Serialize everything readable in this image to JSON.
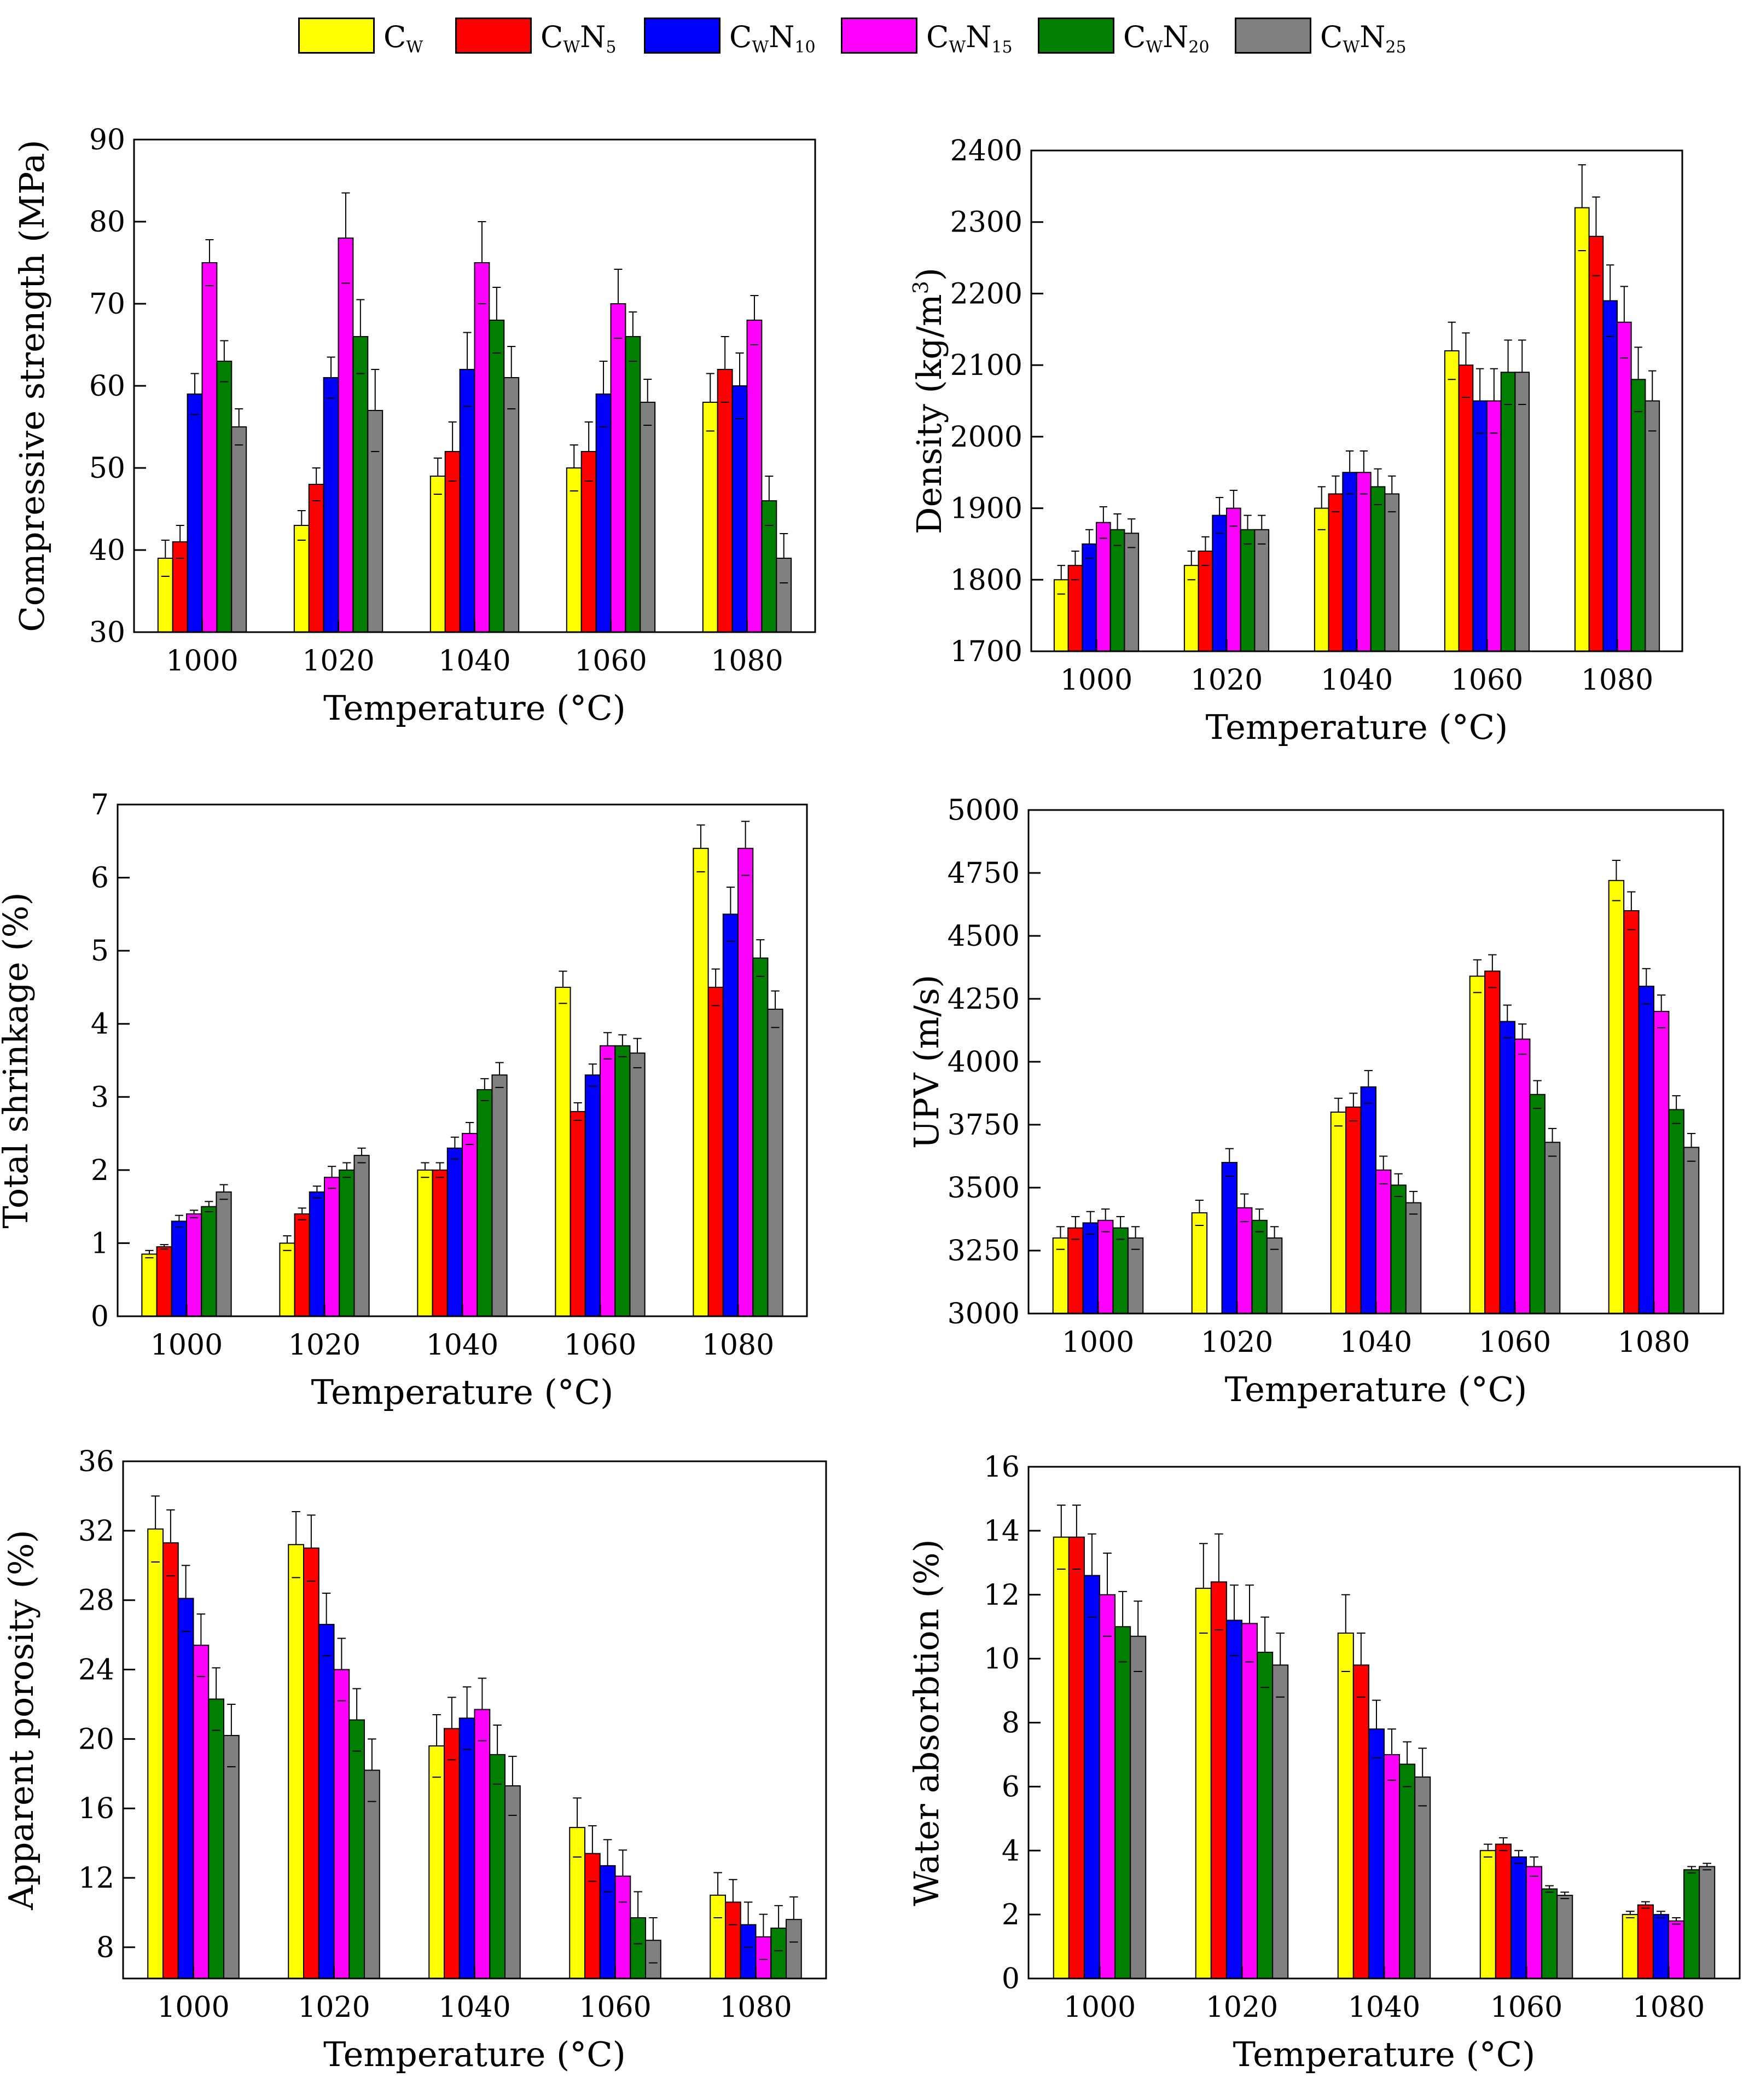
{
  "legend": {
    "items": [
      {
        "base": "C",
        "sub1": "W",
        "mid": "",
        "sub2": "",
        "color": "#ffff00"
      },
      {
        "base": "C",
        "sub1": "W",
        "mid": "N",
        "sub2": "5",
        "color": "#ff0000"
      },
      {
        "base": "C",
        "sub1": "W",
        "mid": "N",
        "sub2": "10",
        "color": "#0000ff"
      },
      {
        "base": "C",
        "sub1": "W",
        "mid": "N",
        "sub2": "15",
        "color": "#ff00ff"
      },
      {
        "base": "C",
        "sub1": "W",
        "mid": "N",
        "sub2": "20",
        "color": "#007f00"
      },
      {
        "base": "C",
        "sub1": "W",
        "mid": "N",
        "sub2": "25",
        "color": "#808080"
      }
    ]
  },
  "chart_data": [
    {
      "type": "bar",
      "xlabel": "Temperature (°C)",
      "ylabel": "Compressive strength (MPa)",
      "ylabel_parts": null,
      "ylim": [
        30,
        90
      ],
      "yticks": [
        30,
        40,
        50,
        60,
        70,
        80,
        90
      ],
      "categories": [
        "1000",
        "1020",
        "1040",
        "1060",
        "1080"
      ],
      "series": [
        {
          "name": "CW",
          "color": "#ffff00",
          "values": [
            39,
            43,
            49,
            50,
            58
          ],
          "errors": [
            2.2,
            1.8,
            2.2,
            2.8,
            3.5
          ]
        },
        {
          "name": "CWN5",
          "color": "#ff0000",
          "values": [
            41,
            48,
            52,
            52,
            62
          ],
          "errors": [
            2.0,
            2.0,
            3.6,
            3.6,
            4.0
          ]
        },
        {
          "name": "CWN10",
          "color": "#0000ff",
          "values": [
            59,
            61,
            62,
            59,
            60
          ],
          "errors": [
            2.5,
            2.5,
            4.5,
            4.0,
            4.0
          ]
        },
        {
          "name": "CWN15",
          "color": "#ff00ff",
          "values": [
            75,
            78,
            75,
            70,
            68
          ],
          "errors": [
            2.8,
            5.5,
            5.0,
            4.2,
            3.0
          ]
        },
        {
          "name": "CWN20",
          "color": "#007f00",
          "values": [
            63,
            66,
            68,
            66,
            46
          ],
          "errors": [
            2.5,
            4.5,
            4.0,
            3.0,
            3.0
          ]
        },
        {
          "name": "CWN25",
          "color": "#808080",
          "values": [
            55,
            57,
            61,
            58,
            39
          ],
          "errors": [
            2.2,
            5.0,
            3.8,
            2.8,
            3.0
          ]
        }
      ]
    },
    {
      "type": "bar",
      "xlabel": "Temperature (°C)",
      "ylabel": "Density (kg/m3)",
      "ylabel_parts": {
        "main": "Density (kg/m",
        "sup": "3",
        "end": ")"
      },
      "ylim": [
        1700,
        2400
      ],
      "yticks": [
        1700,
        1800,
        1900,
        2000,
        2100,
        2200,
        2300,
        2400
      ],
      "categories": [
        "1000",
        "1020",
        "1040",
        "1060",
        "1080"
      ],
      "series": [
        {
          "name": "CW",
          "color": "#ffff00",
          "values": [
            1800,
            1820,
            1900,
            2120,
            2320
          ],
          "errors": [
            20,
            20,
            30,
            40,
            60
          ]
        },
        {
          "name": "CWN5",
          "color": "#ff0000",
          "values": [
            1820,
            1840,
            1920,
            2100,
            2280
          ],
          "errors": [
            20,
            20,
            25,
            45,
            55
          ]
        },
        {
          "name": "CWN10",
          "color": "#0000ff",
          "values": [
            1850,
            1890,
            1950,
            2050,
            2190
          ],
          "errors": [
            20,
            25,
            30,
            45,
            50
          ]
        },
        {
          "name": "CWN15",
          "color": "#ff00ff",
          "values": [
            1880,
            1900,
            1950,
            2050,
            2160
          ],
          "errors": [
            22,
            25,
            30,
            45,
            50
          ]
        },
        {
          "name": "CWN20",
          "color": "#007f00",
          "values": [
            1870,
            1870,
            1930,
            2090,
            2080
          ],
          "errors": [
            22,
            20,
            25,
            45,
            45
          ]
        },
        {
          "name": "CWN25",
          "color": "#808080",
          "values": [
            1865,
            1870,
            1920,
            2090,
            2050
          ],
          "errors": [
            20,
            20,
            25,
            45,
            42
          ]
        }
      ]
    },
    {
      "type": "bar",
      "xlabel": "Temperature (°C)",
      "ylabel": "Total shrinkage (%)",
      "ylabel_parts": null,
      "ylim": [
        0,
        7
      ],
      "yticks": [
        0,
        1,
        2,
        3,
        4,
        5,
        6,
        7
      ],
      "categories": [
        "1000",
        "1020",
        "1040",
        "1060",
        "1080"
      ],
      "series": [
        {
          "name": "CW",
          "color": "#ffff00",
          "values": [
            0.85,
            1.0,
            2.0,
            4.5,
            6.4
          ],
          "errors": [
            0.05,
            0.1,
            0.1,
            0.22,
            0.32
          ]
        },
        {
          "name": "CWN5",
          "color": "#ff0000",
          "values": [
            0.95,
            1.4,
            2.0,
            2.8,
            4.5
          ],
          "errors": [
            0.03,
            0.08,
            0.1,
            0.12,
            0.25
          ]
        },
        {
          "name": "CWN10",
          "color": "#0000ff",
          "values": [
            1.3,
            1.7,
            2.3,
            3.3,
            5.5
          ],
          "errors": [
            0.08,
            0.08,
            0.15,
            0.15,
            0.37
          ]
        },
        {
          "name": "CWN15",
          "color": "#ff00ff",
          "values": [
            1.4,
            1.9,
            2.5,
            3.7,
            6.4
          ],
          "errors": [
            0.05,
            0.15,
            0.15,
            0.18,
            0.37
          ]
        },
        {
          "name": "CWN20",
          "color": "#007f00",
          "values": [
            1.5,
            2.0,
            3.1,
            3.7,
            4.9
          ],
          "errors": [
            0.07,
            0.1,
            0.15,
            0.15,
            0.25
          ]
        },
        {
          "name": "CWN25",
          "color": "#808080",
          "values": [
            1.7,
            2.2,
            3.3,
            3.6,
            4.2
          ],
          "errors": [
            0.1,
            0.1,
            0.17,
            0.2,
            0.25
          ]
        }
      ]
    },
    {
      "type": "bar",
      "xlabel": "Temperature (°C)",
      "ylabel": "UPV (m/s)",
      "ylabel_parts": null,
      "ylim": [
        3000,
        5000
      ],
      "yticks": [
        3000,
        3250,
        3500,
        3750,
        4000,
        4250,
        4500,
        4750,
        5000
      ],
      "categories": [
        "1000",
        "1020",
        "1040",
        "1060",
        "1080"
      ],
      "series": [
        {
          "name": "CW",
          "color": "#ffff00",
          "values": [
            3300,
            3400,
            3800,
            4340,
            4720
          ],
          "errors": [
            45,
            50,
            55,
            65,
            80
          ]
        },
        {
          "name": "CWN5",
          "color": "#ff0000",
          "values": [
            3340,
            3000,
            3820,
            4360,
            4600
          ],
          "errors": [
            45,
            0,
            55,
            65,
            75
          ]
        },
        {
          "name": "CWN10",
          "color": "#0000ff",
          "values": [
            3360,
            3600,
            3900,
            4160,
            4300
          ],
          "errors": [
            45,
            55,
            65,
            65,
            70
          ]
        },
        {
          "name": "CWN15",
          "color": "#ff00ff",
          "values": [
            3370,
            3420,
            3570,
            4090,
            4200
          ],
          "errors": [
            45,
            55,
            55,
            60,
            65
          ]
        },
        {
          "name": "CWN20",
          "color": "#007f00",
          "values": [
            3340,
            3370,
            3510,
            3870,
            3810
          ],
          "errors": [
            45,
            45,
            45,
            55,
            55
          ]
        },
        {
          "name": "CWN25",
          "color": "#808080",
          "values": [
            3300,
            3300,
            3440,
            3680,
            3660
          ],
          "errors": [
            45,
            45,
            45,
            55,
            55
          ]
        }
      ]
    },
    {
      "type": "bar",
      "xlabel": "Temperature (°C)",
      "ylabel": "Apparent porosity (%)",
      "ylabel_parts": null,
      "ylim": [
        6.2,
        36
      ],
      "yticks": [
        8,
        12,
        16,
        20,
        24,
        28,
        32,
        36
      ],
      "categories": [
        "1000",
        "1020",
        "1040",
        "1060",
        "1080"
      ],
      "series": [
        {
          "name": "CW",
          "color": "#ffff00",
          "values": [
            32.1,
            31.2,
            19.6,
            14.9,
            11.0
          ],
          "errors": [
            1.9,
            1.9,
            1.8,
            1.7,
            1.3
          ]
        },
        {
          "name": "CWN5",
          "color": "#ff0000",
          "values": [
            31.3,
            31.0,
            20.6,
            13.4,
            10.6
          ],
          "errors": [
            1.9,
            1.9,
            1.8,
            1.6,
            1.3
          ]
        },
        {
          "name": "CWN10",
          "color": "#0000ff",
          "values": [
            28.1,
            26.6,
            21.2,
            12.7,
            9.3
          ],
          "errors": [
            1.9,
            1.8,
            1.8,
            1.5,
            1.3
          ]
        },
        {
          "name": "CWN15",
          "color": "#ff00ff",
          "values": [
            25.4,
            24.0,
            21.7,
            12.1,
            8.6
          ],
          "errors": [
            1.8,
            1.8,
            1.8,
            1.5,
            1.3
          ]
        },
        {
          "name": "CWN20",
          "color": "#007f00",
          "values": [
            22.3,
            21.1,
            19.1,
            9.7,
            9.1
          ],
          "errors": [
            1.8,
            1.8,
            1.7,
            1.5,
            1.3
          ]
        },
        {
          "name": "CWN25",
          "color": "#808080",
          "values": [
            20.2,
            18.2,
            17.3,
            8.4,
            9.6
          ],
          "errors": [
            1.8,
            1.8,
            1.7,
            1.3,
            1.3
          ]
        }
      ]
    },
    {
      "type": "bar",
      "xlabel": "Temperature (°C)",
      "ylabel": "Water absorbtion (%)",
      "ylabel_parts": null,
      "ylim": [
        0,
        16
      ],
      "yticks": [
        0,
        2,
        4,
        6,
        8,
        10,
        12,
        14,
        16
      ],
      "categories": [
        "1000",
        "1020",
        "1040",
        "1060",
        "1080"
      ],
      "series": [
        {
          "name": "CW",
          "color": "#ffff00",
          "values": [
            13.8,
            12.2,
            10.8,
            4.0,
            2.0
          ],
          "errors": [
            1.0,
            1.4,
            1.2,
            0.2,
            0.1
          ]
        },
        {
          "name": "CWN5",
          "color": "#ff0000",
          "values": [
            13.8,
            12.4,
            9.8,
            4.2,
            2.3
          ],
          "errors": [
            1.0,
            1.5,
            1.0,
            0.2,
            0.1
          ]
        },
        {
          "name": "CWN10",
          "color": "#0000ff",
          "values": [
            12.6,
            11.2,
            7.8,
            3.8,
            2.0
          ],
          "errors": [
            1.3,
            1.1,
            0.9,
            0.2,
            0.1
          ]
        },
        {
          "name": "CWN15",
          "color": "#ff00ff",
          "values": [
            12.0,
            11.1,
            7.0,
            3.5,
            1.8
          ],
          "errors": [
            1.3,
            1.2,
            0.8,
            0.3,
            0.1
          ]
        },
        {
          "name": "CWN20",
          "color": "#007f00",
          "values": [
            11.0,
            10.2,
            6.7,
            2.8,
            3.4
          ],
          "errors": [
            1.1,
            1.1,
            0.7,
            0.1,
            0.1
          ]
        },
        {
          "name": "CWN25",
          "color": "#808080",
          "values": [
            10.7,
            9.8,
            6.3,
            2.6,
            3.5
          ],
          "errors": [
            1.1,
            1.0,
            0.9,
            0.1,
            0.1
          ]
        }
      ]
    }
  ]
}
